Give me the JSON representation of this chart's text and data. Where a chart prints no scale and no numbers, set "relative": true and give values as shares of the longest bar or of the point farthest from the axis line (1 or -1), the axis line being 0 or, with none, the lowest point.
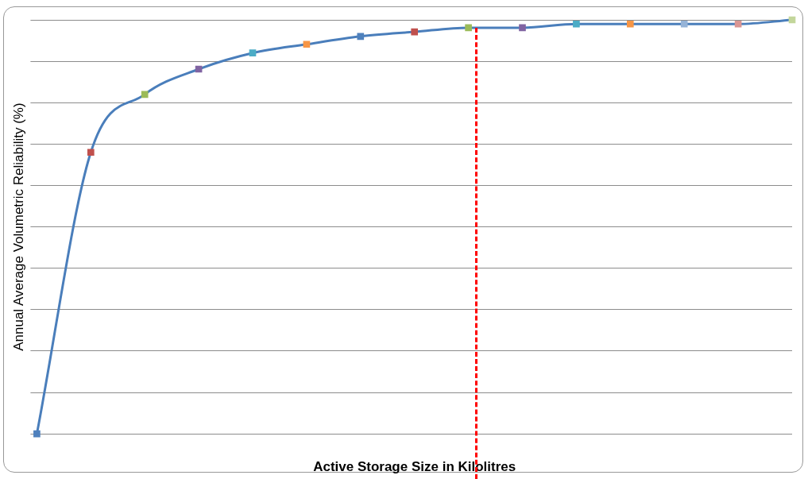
{
  "chart_data": {
    "type": "line",
    "relative": true,
    "xlabel": "Active Storage Size in Kilolitres",
    "ylabel": "Annual Average Volumetric Reliability (%)",
    "categories": [
      null,
      null,
      null,
      null,
      null,
      null,
      null,
      null,
      null,
      null,
      null,
      null,
      null,
      null,
      null
    ],
    "series": [
      {
        "color": "#4a7ebb",
        "colors": [
          "#4f81bd",
          "#c0504d",
          "#9bbb59",
          "#8064a2",
          "#4bacc6",
          "#f79646",
          "#4f81bd",
          "#c0504d",
          "#9bbb59",
          "#8064a2",
          "#4bacc6",
          "#f79646",
          "#95b3d7",
          "#d99694",
          "#c3d69b"
        ],
        "values": [
          0,
          0.68,
          0.82,
          0.881,
          0.92,
          0.941,
          0.96,
          0.971,
          0.981,
          0.981,
          0.99,
          0.99,
          0.99,
          0.99,
          1
        ]
      }
    ],
    "marker": "square",
    "grid": "y",
    "legend": false
  }
}
